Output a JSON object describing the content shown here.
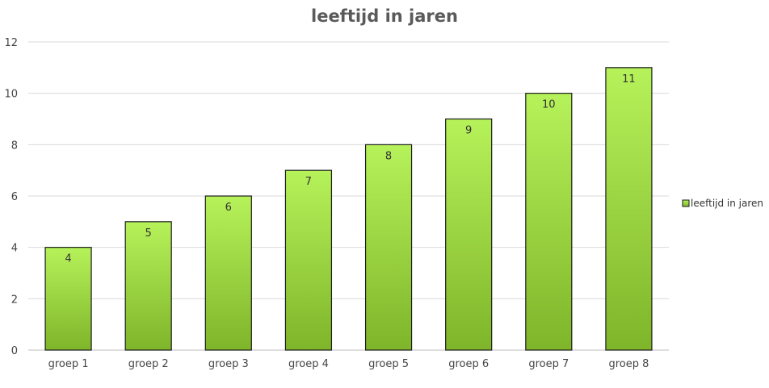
{
  "chart_data": {
    "type": "bar",
    "title": "leeftijd in jaren",
    "categories": [
      "groep 1",
      "groep 2",
      "groep 3",
      "groep 4",
      "groep 5",
      "groep 6",
      "groep 7",
      "groep 8"
    ],
    "series": [
      {
        "name": "leeftijd in jaren",
        "values": [
          4,
          5,
          6,
          7,
          8,
          9,
          10,
          11
        ]
      }
    ],
    "xlabel": "",
    "ylabel": "",
    "ylim": [
      0,
      12
    ],
    "yticks": [
      0,
      2,
      4,
      6,
      8,
      10,
      12
    ],
    "grid": true,
    "legend_position": "right",
    "data_labels": true,
    "colors": {
      "bar_light": "#b6f25a",
      "bar_dark": "#7fb52a",
      "bar_stroke": "#1a1a1a",
      "grid": "#d9d9d9"
    }
  }
}
